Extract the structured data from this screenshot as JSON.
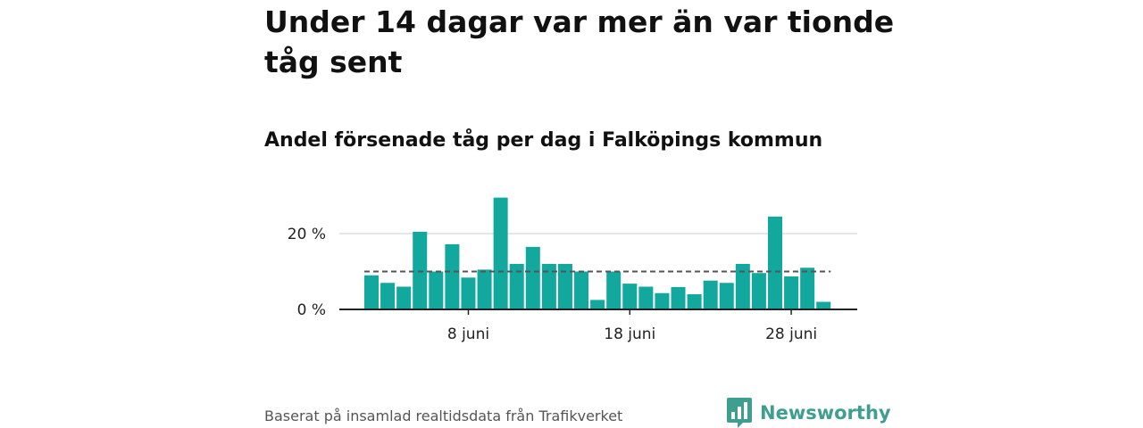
{
  "headline": "Under 14 dagar var mer än var tionde tåg sent",
  "subtitle": "Andel försenade tåg per dag i Falköpings kommun",
  "source": "Baserat på insamlad realtidsdata från Trafikverket",
  "brand": {
    "name": "Newsworthy",
    "icon": "newsworthy-logo-icon",
    "color": "#3e9e8f"
  },
  "chart_data": {
    "type": "bar",
    "x": [
      "2 juni",
      "3 juni",
      "4 juni",
      "5 juni",
      "6 juni",
      "7 juni",
      "8 juni",
      "9 juni",
      "10 juni",
      "11 juni",
      "12 juni",
      "13 juni",
      "14 juni",
      "15 juni",
      "16 juni",
      "17 juni",
      "18 juni",
      "19 juni",
      "20 juni",
      "21 juni",
      "22 juni",
      "23 juni",
      "24 juni",
      "25 juni",
      "26 juni",
      "27 juni",
      "28 juni",
      "29 juni",
      "30 juni"
    ],
    "values": [
      9,
      7,
      6,
      20.5,
      10,
      17.2,
      8.4,
      10.5,
      29.5,
      12,
      16.5,
      12,
      12,
      10,
      2.5,
      10,
      6.8,
      6,
      4.3,
      5.9,
      4,
      7.6,
      7,
      12,
      9.6,
      24.5,
      8.7,
      11,
      2
    ],
    "reference_line": 10,
    "reference_style": "dashed",
    "ylim": [
      0,
      31
    ],
    "yticks": [
      {
        "value": 0,
        "label": "0 %"
      },
      {
        "value": 20,
        "label": "20 %"
      }
    ],
    "xticks": [
      {
        "index": 6,
        "label": "8 juni"
      },
      {
        "index": 16,
        "label": "18 juni"
      },
      {
        "index": 26,
        "label": "28 juni"
      }
    ],
    "grid": true,
    "bar_color": "#13a89e",
    "reference_color": "#555555",
    "grid_color": "#dddddd",
    "axis_color": "#222222"
  }
}
